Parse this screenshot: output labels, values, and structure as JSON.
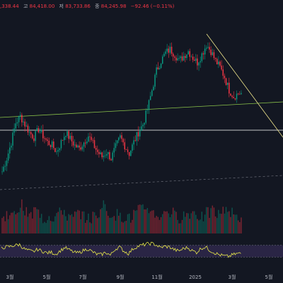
{
  "header": {
    "open_value": ",338.44",
    "high_label": "고",
    "high_value": "84,418.00",
    "low_label": "저",
    "low_value": "83,733.86",
    "close_label": "종",
    "close_value": "84,245.98",
    "change_value": "−92.46 (−0.11%)"
  },
  "colors": {
    "background": "#131722",
    "up": "#089981",
    "down": "#f23645",
    "text": "#b2b5be",
    "trendline_green": "#8bc34a",
    "trendline_yellow": "#f0e68c",
    "horizontal_line": "#ffffff",
    "rsi_line": "#e8e84a",
    "rsi_band": "#3b2f5e"
  },
  "chart_data": {
    "type": "candlestick",
    "title": "",
    "x_axis": {
      "tick_labels": [
        "3월",
        "5월",
        "7월",
        "9월",
        "11월",
        "2025",
        "3월",
        "5월"
      ]
    },
    "price_series": {
      "name": "",
      "approximate_closes": [
        0.12,
        0.2,
        0.3,
        0.42,
        0.46,
        0.41,
        0.36,
        0.33,
        0.38,
        0.34,
        0.3,
        0.28,
        0.24,
        0.3,
        0.36,
        0.32,
        0.28,
        0.26,
        0.3,
        0.34,
        0.29,
        0.24,
        0.21,
        0.24,
        0.2,
        0.27,
        0.33,
        0.28,
        0.23,
        0.3,
        0.36,
        0.41,
        0.5,
        0.62,
        0.74,
        0.8,
        0.85,
        0.87,
        0.84,
        0.8,
        0.83,
        0.86,
        0.82,
        0.79,
        0.84,
        0.9,
        0.86,
        0.8,
        0.76,
        0.7,
        0.62,
        0.58,
        0.6
      ]
    },
    "volume_series": {
      "name": "Volume",
      "approximate_values": [
        0.3,
        0.5,
        0.4,
        0.6,
        0.8,
        0.5,
        0.4,
        0.6,
        0.5,
        0.3,
        0.4,
        0.35,
        0.5,
        0.6,
        0.4,
        0.3,
        0.45,
        0.5,
        0.35,
        0.3,
        0.4,
        0.5,
        0.9,
        0.4,
        0.5,
        0.45,
        0.35,
        0.4,
        0.3,
        0.5,
        0.6,
        0.7,
        0.65,
        0.5,
        0.4,
        0.45,
        0.6,
        0.5,
        0.4,
        0.35,
        0.45,
        0.5,
        0.55,
        0.4,
        0.35,
        0.5,
        0.6,
        0.45,
        0.55,
        0.7,
        0.5,
        0.4,
        0.35
      ]
    },
    "rsi_series": {
      "name": "RSI",
      "approximate_values": [
        60,
        64,
        66,
        70,
        72,
        58,
        52,
        48,
        56,
        50,
        44,
        46,
        40,
        52,
        62,
        54,
        46,
        44,
        52,
        58,
        48,
        40,
        38,
        46,
        36,
        56,
        64,
        50,
        42,
        58,
        66,
        70,
        74,
        76,
        72,
        62,
        66,
        64,
        56,
        50,
        58,
        62,
        52,
        46,
        60,
        64,
        52,
        44,
        38,
        34,
        32,
        38,
        42
      ],
      "band": [
        30,
        70
      ]
    },
    "annotations": [
      {
        "kind": "trendline",
        "color": "green",
        "from": "start",
        "to": "end"
      },
      {
        "kind": "trendline",
        "color": "yellow",
        "from": "high",
        "to": "right-edge"
      },
      {
        "kind": "horizontal-line",
        "color": "white"
      },
      {
        "kind": "dashed-support-line",
        "color": "grey"
      }
    ]
  }
}
